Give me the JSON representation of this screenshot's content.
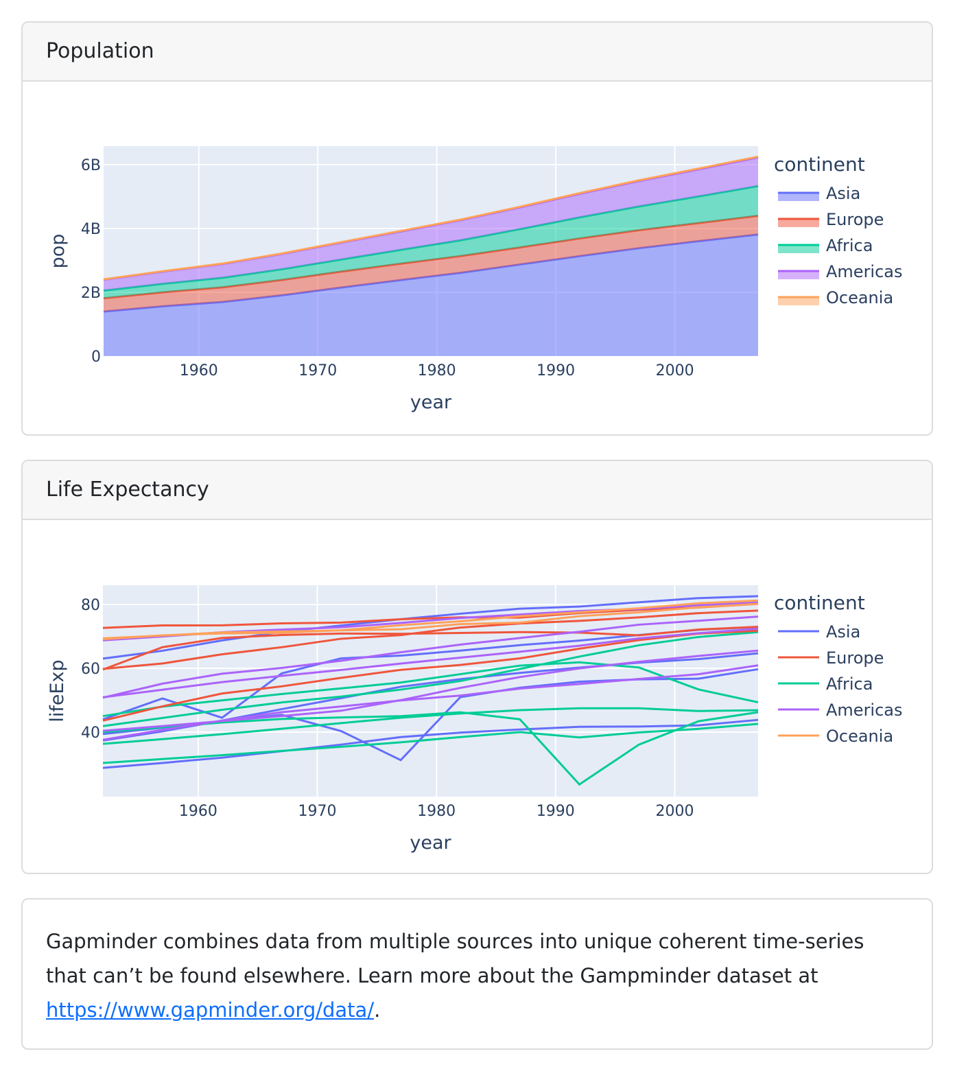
{
  "cards": {
    "population_title": "Population",
    "life_title": "Life Expectancy",
    "text": "Gapminder combines data from multiple sources into unique coherent time-series that can’t be found elsewhere. Learn more about the Gampminder dataset at ",
    "link": "https://www.gapminder.org/data/",
    "text_end": "."
  },
  "colors": {
    "Asia": "#636efa",
    "Europe": "#EF553B",
    "Africa": "#00cc96",
    "Americas": "#ab63fa",
    "Oceania": "#FFA15A",
    "plot_bg": "#e5ecf6"
  },
  "chart_data": [
    {
      "type": "area",
      "stacked": true,
      "xlabel": "year",
      "ylabel": "pop",
      "legend_title": "continent",
      "legend_placement": "right",
      "xlim": [
        1952,
        2007
      ],
      "ylim": [
        0,
        6600000000.0
      ],
      "xticks": [
        1960,
        1970,
        1980,
        1990,
        2000
      ],
      "yticks": [
        {
          "v": 0,
          "label": "0"
        },
        {
          "v": 2000000000.0,
          "label": "2B"
        },
        {
          "v": 4000000000.0,
          "label": "4B"
        },
        {
          "v": 6000000000.0,
          "label": "6B"
        }
      ],
      "grid": true,
      "x": [
        1952,
        1957,
        1962,
        1967,
        1972,
        1977,
        1982,
        1987,
        1992,
        1997,
        2002,
        2007
      ],
      "series": [
        {
          "name": "Asia",
          "values": [
            1395000000.0,
            1562000000.0,
            1697000000.0,
            1905000000.0,
            2150000000.0,
            2384000000.0,
            2610000000.0,
            2872000000.0,
            3133000000.0,
            3383000000.0,
            3602000000.0,
            3812000000.0
          ]
        },
        {
          "name": "Europe",
          "values": [
            418000000.0,
            438000000.0,
            460000000.0,
            481000000.0,
            500000000.0,
            513000000.0,
            524000000.0,
            534000000.0,
            554000000.0,
            564000000.0,
            568000000.0,
            586000000.0
          ]
        },
        {
          "name": "Africa",
          "values": [
            237000000.0,
            265000000.0,
            297000000.0,
            336000000.0,
            378000000.0,
            434000000.0,
            495000000.0,
            574000000.0,
            660000000.0,
            744000000.0,
            834000000.0,
            930000000.0
          ]
        },
        {
          "name": "Americas",
          "values": [
            345000000.0,
            386000000.0,
            433000000.0,
            481000000.0,
            530000000.0,
            578000000.0,
            630000000.0,
            682000000.0,
            739000000.0,
            797000000.0,
            850000000.0,
            899000000.0
          ]
        },
        {
          "name": "Oceania",
          "values": [
            10700000.0,
            11900000.0,
            12900000.0,
            14300000.0,
            16200000.0,
            17500000.0,
            18500000.0,
            19800000.0,
            21200000.0,
            22600000.0,
            23900000.0,
            24500000.0
          ]
        }
      ]
    },
    {
      "type": "line",
      "xlabel": "year",
      "ylabel": "lifeExp",
      "legend_title": "continent",
      "legend_placement": "right",
      "xlim": [
        1952,
        2007
      ],
      "ylim": [
        20,
        86
      ],
      "xticks": [
        1960,
        1970,
        1980,
        1990,
        2000
      ],
      "yticks": [
        40,
        60,
        80
      ],
      "grid": true,
      "legend": [
        "Asia",
        "Europe",
        "Africa",
        "Americas",
        "Oceania"
      ],
      "x": [
        1952,
        1957,
        1962,
        1967,
        1972,
        1977,
        1982,
        1987,
        1992,
        1997,
        2002,
        2007
      ],
      "series": [
        {
          "continent": "Asia",
          "values": [
            63.03,
            65.5,
            68.73,
            71.43,
            73.42,
            75.38,
            77.11,
            78.67,
            79.36,
            80.69,
            82,
            82.6
          ]
        },
        {
          "continent": "Asia",
          "values": [
            44,
            50.55,
            44.5,
            58.38,
            63.12,
            63.97,
            65.53,
            67.27,
            68.69,
            70.43,
            72.03,
            72.96
          ]
        },
        {
          "continent": "Asia",
          "values": [
            37.37,
            40.25,
            43.6,
            47.19,
            50.65,
            54.21,
            56.6,
            58.55,
            60.22,
            61.77,
            62.88,
            64.7
          ]
        },
        {
          "continent": "Asia",
          "values": [
            28.8,
            30.33,
            32,
            34.02,
            36.09,
            38.44,
            39.85,
            40.82,
            41.67,
            41.76,
            42.13,
            43.83
          ]
        },
        {
          "continent": "Asia",
          "values": [
            39.42,
            41.37,
            43.42,
            45.42,
            40.32,
            31.22,
            50.96,
            53.91,
            55.8,
            56.53,
            56.75,
            59.72
          ]
        },
        {
          "continent": "Africa",
          "values": [
            40,
            41.5,
            43,
            44.1,
            44.6,
            45,
            46.22,
            44.02,
            23.6,
            36.09,
            43.41,
            46.24
          ]
        },
        {
          "continent": "Africa",
          "values": [
            45.01,
            47.99,
            49.95,
            51.93,
            53.7,
            55.53,
            58.16,
            60.83,
            61.89,
            60.24,
            53.37,
            49.34
          ]
        },
        {
          "continent": "Africa",
          "values": [
            41.89,
            44.44,
            46.99,
            49.29,
            51.14,
            53.32,
            56.01,
            59.8,
            63.67,
            67.22,
            69.81,
            71.34
          ]
        },
        {
          "continent": "Africa",
          "values": [
            36.32,
            37.8,
            39.36,
            41.04,
            42.82,
            44.51,
            45.83,
            46.89,
            47.47,
            47.46,
            46.61,
            46.86
          ]
        },
        {
          "continent": "Africa",
          "values": [
            30.33,
            31.57,
            32.77,
            34.11,
            35.4,
            36.79,
            38.45,
            40.01,
            38.33,
            39.9,
            41.01,
            42.57
          ]
        },
        {
          "continent": "Europe",
          "values": [
            72.67,
            73.44,
            73.47,
            74.08,
            74.34,
            75.37,
            75.97,
            75.89,
            77.32,
            78.32,
            79.05,
            80.2
          ]
        },
        {
          "continent": "Europe",
          "values": [
            43.59,
            48.08,
            52.1,
            54.34,
            57.01,
            59.51,
            61.04,
            63.11,
            66.15,
            68.84,
            70.85,
            71.78
          ]
        },
        {
          "continent": "Europe",
          "values": [
            59.82,
            61.51,
            64.39,
            66.6,
            69.26,
            70.41,
            72.77,
            74.06,
            74.86,
            75.97,
            77.29,
            78.1
          ]
        },
        {
          "continent": "Europe",
          "values": [
            59.6,
            66.61,
            69.51,
            70.42,
            70.9,
            70.81,
            71.08,
            71.34,
            71.19,
            70.32,
            72.14,
            73.0
          ]
        },
        {
          "continent": "Americas",
          "values": [
            68.75,
            69.96,
            71.3,
            72.13,
            72.88,
            74.21,
            75.76,
            76.86,
            77.95,
            78.61,
            79.77,
            80.65
          ]
        },
        {
          "continent": "Americas",
          "values": [
            37.58,
            40.7,
            43.59,
            46.24,
            48.04,
            49.92,
            51.46,
            53.64,
            55.09,
            56.67,
            58.14,
            60.92
          ]
        },
        {
          "continent": "Americas",
          "values": [
            40.41,
            41.89,
            43.43,
            45.03,
            46.71,
            50.02,
            53.86,
            57.25,
            59.96,
            62.05,
            63.88,
            65.55
          ]
        },
        {
          "continent": "Americas",
          "values": [
            50.92,
            53.29,
            55.67,
            57.63,
            59.5,
            61.49,
            63.34,
            65.2,
            67.06,
            69.39,
            71.01,
            72.39
          ]
        },
        {
          "continent": "Americas",
          "values": [
            50.79,
            55.19,
            58.3,
            60.11,
            62.36,
            65.03,
            67.41,
            69.5,
            71.46,
            73.67,
            74.9,
            76.2
          ]
        },
        {
          "continent": "Oceania",
          "values": [
            69.12,
            70.33,
            70.93,
            71.1,
            71.93,
            73.49,
            74.74,
            76.32,
            77.56,
            78.83,
            80.37,
            81.23
          ]
        },
        {
          "continent": "Oceania",
          "values": [
            69.39,
            70.26,
            71.24,
            71.52,
            71.89,
            72.22,
            73.84,
            74.32,
            76.33,
            77.55,
            79.11,
            80.2
          ]
        }
      ]
    }
  ]
}
